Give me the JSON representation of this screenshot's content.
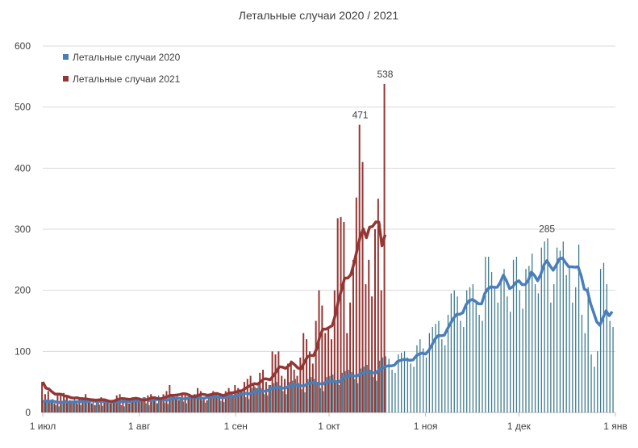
{
  "chart_data": {
    "type": "bar",
    "title": "Летальные случаи 2020 / 2021",
    "xlabel": "",
    "ylabel": "",
    "ylim": [
      0,
      600
    ],
    "yticks": [
      0,
      100,
      200,
      300,
      400,
      500,
      600
    ],
    "x_start": "1 июл",
    "xticks": [
      {
        "label": "1 июл",
        "day": 0
      },
      {
        "label": "1 авг",
        "day": 31
      },
      {
        "label": "1 сен",
        "day": 62
      },
      {
        "label": "1 окт",
        "day": 92
      },
      {
        "label": "1 ноя",
        "day": 123
      },
      {
        "label": "1 дек",
        "day": 153
      },
      {
        "label": "1 янв",
        "day": 184
      }
    ],
    "grid": true,
    "legend_position": "top-left",
    "trend": "moving average (7 days)",
    "series": [
      {
        "name": "Летальные случаи 2020",
        "color": "#4A7EBB",
        "bar_color": "#3E7A8E",
        "values": [
          18,
          20,
          16,
          22,
          12,
          10,
          19,
          21,
          18,
          17,
          24,
          14,
          12,
          20,
          22,
          19,
          23,
          18,
          13,
          11,
          21,
          20,
          18,
          22,
          19,
          12,
          10,
          24,
          22,
          21,
          23,
          20,
          25,
          15,
          12,
          24,
          26,
          28,
          22,
          16,
          14,
          26,
          28,
          30,
          25,
          18,
          15,
          27,
          29,
          30,
          26,
          20,
          16,
          28,
          30,
          32,
          27,
          19,
          17,
          30,
          32,
          28,
          35,
          38,
          32,
          25,
          22,
          40,
          42,
          45,
          40,
          30,
          28,
          45,
          48,
          50,
          44,
          35,
          30,
          50,
          52,
          55,
          48,
          38,
          33,
          55,
          58,
          55,
          50,
          40,
          35,
          58,
          60,
          62,
          50,
          45,
          65,
          68,
          70,
          66,
          55,
          48,
          72,
          75,
          78,
          70,
          58,
          52,
          85,
          90,
          92,
          88,
          70,
          65,
          95,
          98,
          100,
          90,
          80,
          75,
          110,
          120,
          105,
          90,
          130,
          140,
          145,
          150,
          120,
          110,
          160,
          195,
          200,
          190,
          150,
          140,
          200,
          205,
          210,
          180,
          160,
          150,
          255,
          255,
          230,
          205,
          180,
          215,
          235,
          190,
          165,
          250,
          255,
          200,
          170,
          235,
          240,
          260,
          210,
          195,
          270,
          280,
          285,
          180,
          210,
          270,
          265,
          280,
          225,
          240,
          180,
          205,
          275,
          160,
          130,
          205,
          95,
          75,
          100,
          235,
          245,
          210,
          150,
          140
        ]
      },
      {
        "name": "Летальные случаи 2021",
        "color": "#943634",
        "bar_color": "#943634",
        "values": [
          50,
          30,
          35,
          20,
          15,
          30,
          28,
          32,
          25,
          20,
          15,
          18,
          22,
          25,
          30,
          20,
          15,
          12,
          20,
          25,
          22,
          18,
          15,
          20,
          28,
          30,
          25,
          18,
          15,
          22,
          25,
          20,
          18,
          25,
          28,
          30,
          22,
          15,
          20,
          30,
          35,
          45,
          30,
          25,
          20,
          30,
          28,
          22,
          25,
          30,
          40,
          35,
          25,
          20,
          30,
          35,
          32,
          28,
          25,
          35,
          40,
          30,
          45,
          40,
          35,
          50,
          55,
          60,
          45,
          40,
          65,
          70,
          50,
          45,
          100,
          95,
          100,
          60,
          55,
          80,
          85,
          70,
          60,
          90,
          130,
          120,
          100,
          80,
          150,
          200,
          175,
          130,
          140,
          120,
          200,
          318,
          320,
          312,
          130,
          180,
          250,
          352,
          471,
          410,
          210,
          250,
          190,
          300,
          350,
          200,
          538
        ]
      }
    ],
    "data_labels": [
      {
        "series": 1,
        "day": 102,
        "text": "471"
      },
      {
        "series": 1,
        "day": 110,
        "text": "538"
      },
      {
        "series": 0,
        "day": 162,
        "text": "285"
      }
    ]
  }
}
